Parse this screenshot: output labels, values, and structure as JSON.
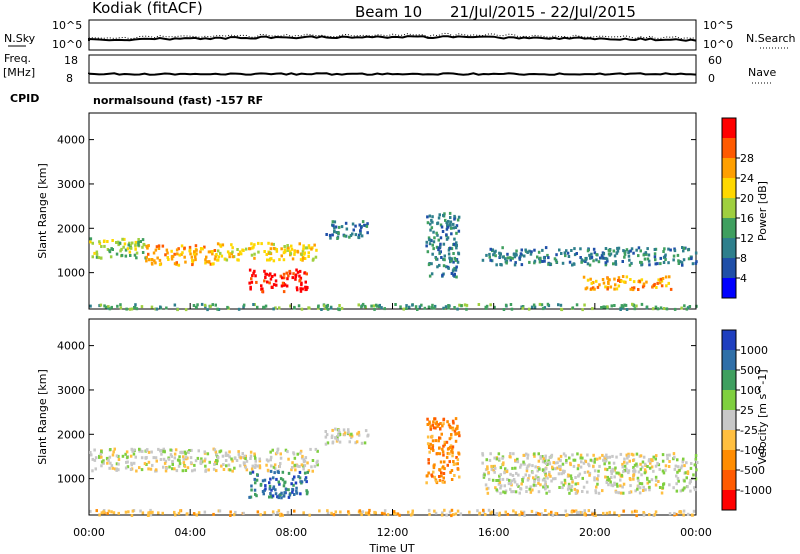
{
  "header": {
    "station": "Kodiak (fitACF)",
    "beam": "Beam 10",
    "date_range": "21/Jul/2015 - 22/Jul/2015"
  },
  "status_panels": {
    "nsky_label": "N.Sky",
    "nsearch_label": "N.Search",
    "noise_ticks_left": [
      "10^5",
      "10^0"
    ],
    "noise_ticks_right": [
      "10^5",
      "10^0"
    ],
    "freq_label_1": "Freq.",
    "freq_label_2": "[MHz]",
    "freq_ticks": [
      "18",
      "8"
    ],
    "nave_label": "Nave",
    "nave_ticks": [
      "60",
      "0"
    ],
    "cpid_label": "CPID",
    "cpid_text": "normalsound (fast) -157 RF"
  },
  "chart_data": [
    {
      "type": "heatmap",
      "name": "power-panel",
      "ylabel": "Slant Range [km]",
      "yticks": [
        "1000",
        "2000",
        "3000",
        "4000"
      ],
      "ylim": [
        180,
        4600
      ],
      "xlim_hours": [
        0,
        24
      ],
      "colorbar": {
        "label": "Power [dB]",
        "ticks": [
          "4",
          "8",
          "12",
          "16",
          "20",
          "24",
          "28"
        ],
        "colors": [
          "#0000ff",
          "#1f4fa8",
          "#2e7f8c",
          "#3f9f5f",
          "#9fcf3f",
          "#ffd800",
          "#ff9f00",
          "#ff5a00",
          "#ff0000"
        ]
      },
      "bands": [
        {
          "x": [
            0,
            2.2
          ],
          "y": [
            1350,
            1800
          ],
          "level": 4
        },
        {
          "x": [
            2.2,
            5.0
          ],
          "y": [
            1200,
            1650
          ],
          "level": 6
        },
        {
          "x": [
            5.0,
            9.0
          ],
          "y": [
            1300,
            1700
          ],
          "level": 5
        },
        {
          "x": [
            6.3,
            8.6
          ],
          "y": [
            600,
            1100
          ],
          "level": 8
        },
        {
          "x": [
            9.3,
            11.0
          ],
          "y": [
            1800,
            2200
          ],
          "level": 2
        },
        {
          "x": [
            13.3,
            14.6
          ],
          "y": [
            900,
            2400
          ],
          "level": 2
        },
        {
          "x": [
            15.5,
            24.0
          ],
          "y": [
            1200,
            1600
          ],
          "level": 2
        },
        {
          "x": [
            19.5,
            23.0
          ],
          "y": [
            650,
            950
          ],
          "level": 6
        },
        {
          "x": [
            0,
            24
          ],
          "y": [
            200,
            320
          ],
          "level": 3
        }
      ]
    },
    {
      "type": "heatmap",
      "name": "velocity-panel",
      "ylabel": "Slant Range [km]",
      "yticks": [
        "1000",
        "2000",
        "3000",
        "4000"
      ],
      "ylim": [
        180,
        4600
      ],
      "xlim_hours": [
        0,
        24
      ],
      "colorbar": {
        "label": "Velocity [m s^-1]",
        "ticks": [
          "1000",
          "500",
          "100",
          "25",
          "-25",
          "-100",
          "-500",
          "-1000"
        ],
        "colors": [
          "#1f3fbf",
          "#2f6fa8",
          "#3f9f5f",
          "#7fcf3f",
          "#c8c8c8",
          "#ffbf40",
          "#ff8c00",
          "#ff5a00",
          "#ff0000"
        ]
      },
      "bands": [
        {
          "x": [
            0,
            9.0
          ],
          "y": [
            1200,
            1700
          ],
          "level": 4
        },
        {
          "x": [
            6.3,
            8.6
          ],
          "y": [
            600,
            1200
          ],
          "level": 1
        },
        {
          "x": [
            9.3,
            11.0
          ],
          "y": [
            1800,
            2200
          ],
          "level": 4
        },
        {
          "x": [
            13.3,
            14.6
          ],
          "y": [
            900,
            2400
          ],
          "level": 6
        },
        {
          "x": [
            15.5,
            24.0
          ],
          "y": [
            700,
            1600
          ],
          "level": 4
        },
        {
          "x": [
            0,
            24
          ],
          "y": [
            200,
            320
          ],
          "level": 5
        }
      ]
    }
  ],
  "xaxis": {
    "label": "Time UT",
    "ticks": [
      "00:00",
      "04:00",
      "08:00",
      "12:00",
      "16:00",
      "20:00",
      "00:00"
    ]
  }
}
